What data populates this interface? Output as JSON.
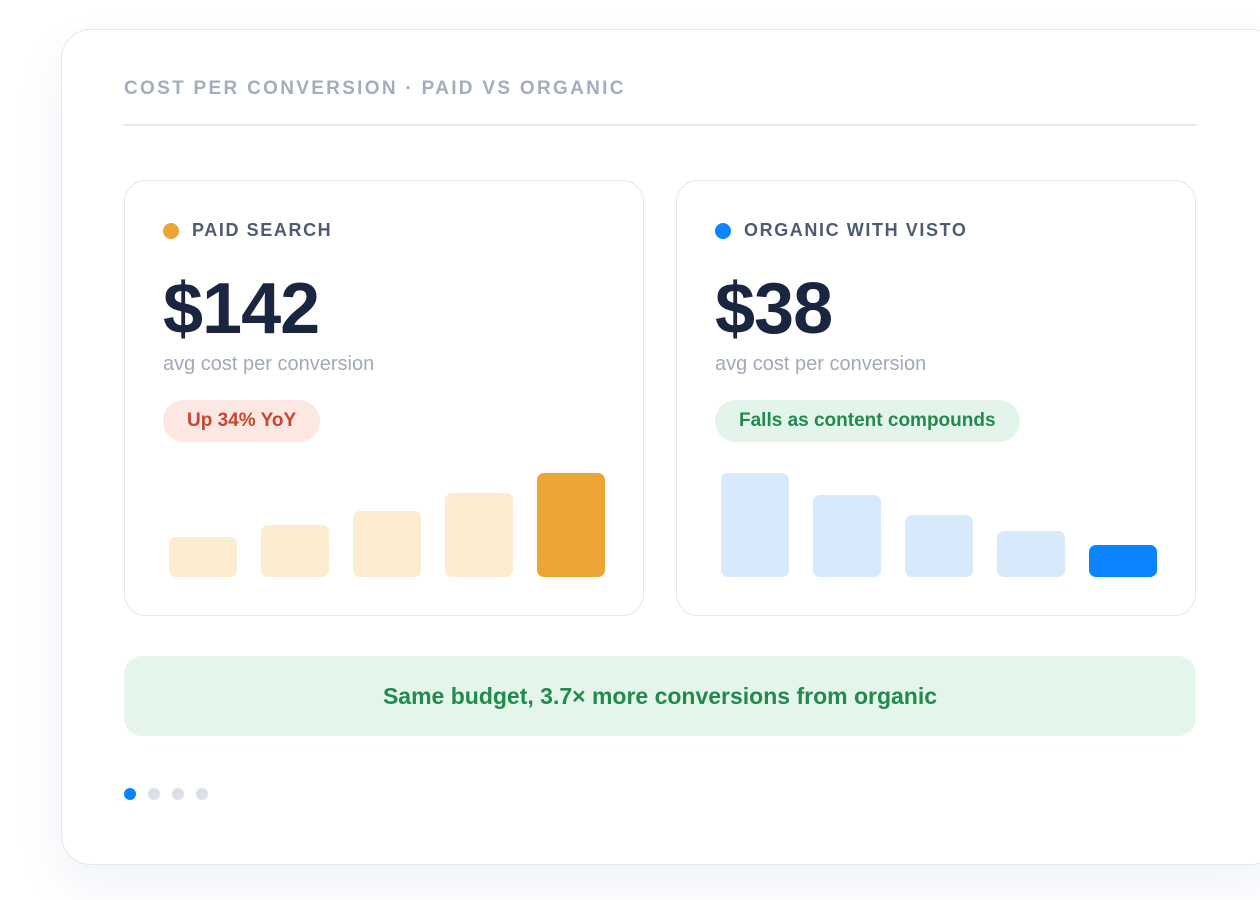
{
  "header": {
    "title": "COST PER CONVERSION · PAID VS ORGANIC"
  },
  "colors": {
    "paid_accent": "#eca535",
    "paid_muted": "#fcedcf",
    "organic_accent": "#0a84ff",
    "organic_muted": "#d9e9fc"
  },
  "panels": {
    "paid": {
      "label": "PAID SEARCH",
      "value": "$142",
      "sublabel": "avg cost per conversion",
      "badge": "Up 34% YoY"
    },
    "organic": {
      "label": "ORGANIC WITH VISTO",
      "value": "$38",
      "sublabel": "avg cost per conversion",
      "badge": "Falls as content compounds"
    }
  },
  "chart_data": [
    {
      "type": "bar",
      "series": "paid",
      "values": [
        0.38,
        0.5,
        0.63,
        0.81,
        1.0
      ],
      "highlight_index": 4
    },
    {
      "type": "bar",
      "series": "organic",
      "values": [
        1.0,
        0.79,
        0.6,
        0.44,
        0.31
      ],
      "highlight_index": 4
    }
  ],
  "summary": {
    "text": "Same budget, 3.7× more conversions from organic"
  },
  "pagination": {
    "total": 4,
    "active": 0
  }
}
